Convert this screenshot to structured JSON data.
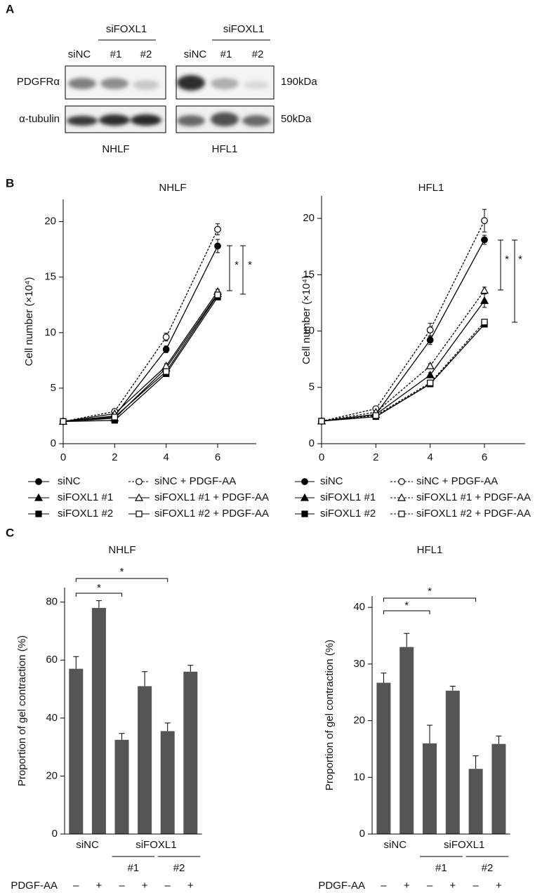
{
  "panel_labels": [
    "A",
    "B",
    "C"
  ],
  "blot": {
    "groups": [
      "siFOXL1",
      "siFOXL1"
    ],
    "lanes": [
      "siNC",
      "#1",
      "#2",
      "siNC",
      "#1",
      "#2"
    ],
    "rows": [
      "PDGFRα",
      "α-tubulin"
    ],
    "sizes": [
      "190kDa",
      "50kDa"
    ],
    "cells": [
      "NHLF",
      "HFL1"
    ]
  },
  "chart_data": [
    {
      "type": "line",
      "title": "NHLF",
      "y_label": "Cell number (×10⁴)",
      "x": [
        0,
        2,
        4,
        6
      ],
      "xlim": [
        0,
        7.5
      ],
      "xticks": [
        0,
        2,
        4,
        6
      ],
      "ylim": [
        0,
        22
      ],
      "yticks": [
        0,
        5,
        10,
        15,
        20
      ],
      "series": [
        {
          "name": "siNC",
          "color": "#000000",
          "marker": "circle",
          "filled": true,
          "dash": false,
          "values": [
            2,
            2.5,
            8.5,
            17.8
          ],
          "errors": [
            0.1,
            0.15,
            0.3,
            0.6
          ]
        },
        {
          "name": "siFOXL1 #1",
          "color": "#000000",
          "marker": "triangle",
          "filled": true,
          "dash": false,
          "values": [
            2,
            2.3,
            6.8,
            13.5
          ],
          "errors": [
            0.1,
            0.1,
            0.2,
            0.2
          ]
        },
        {
          "name": "siFOXL1 #2",
          "color": "#000000",
          "marker": "square",
          "filled": true,
          "dash": false,
          "values": [
            2,
            2.1,
            6.3,
            13.2
          ],
          "errors": [
            0.1,
            0.1,
            0.2,
            0.2
          ]
        },
        {
          "name": "siNC + PDGF-AA",
          "color": "#000000",
          "marker": "circle",
          "filled": false,
          "dash": true,
          "values": [
            2,
            2.9,
            9.6,
            19.3
          ],
          "errors": [
            0.1,
            0.15,
            0.35,
            0.5
          ]
        },
        {
          "name": "siFOXL1 #1 + PDGF-AA",
          "color": "#000000",
          "marker": "triangle",
          "filled": false,
          "dash": false,
          "values": [
            2,
            2.7,
            7.0,
            13.7
          ],
          "errors": [
            0.1,
            0.1,
            0.2,
            0.2
          ]
        },
        {
          "name": "siFOXL1 #2 + PDGF-AA",
          "color": "#000000",
          "marker": "square",
          "filled": false,
          "dash": false,
          "values": [
            2,
            2.4,
            6.5,
            13.4
          ],
          "errors": [
            0.1,
            0.1,
            0.2,
            0.2
          ]
        }
      ],
      "annotations": [
        "*",
        "*"
      ]
    },
    {
      "type": "line",
      "title": "HFL1",
      "y_label": "Cell number (×10⁴)",
      "x": [
        0,
        2,
        4,
        6
      ],
      "xlim": [
        0,
        7.5
      ],
      "xticks": [
        0,
        2,
        4,
        6
      ],
      "ylim": [
        0,
        22
      ],
      "yticks": [
        0,
        5,
        10,
        15,
        20
      ],
      "series": [
        {
          "name": "siNC",
          "color": "#000000",
          "marker": "circle",
          "filled": true,
          "dash": false,
          "values": [
            2,
            2.6,
            9.2,
            18.1
          ],
          "errors": [
            0.1,
            0.15,
            0.4,
            0.4
          ]
        },
        {
          "name": "siFOXL1 #1",
          "color": "#000000",
          "marker": "triangle",
          "filled": true,
          "dash": false,
          "values": [
            2,
            2.6,
            6.1,
            12.7
          ],
          "errors": [
            0.1,
            0.1,
            0.2,
            0.6
          ]
        },
        {
          "name": "siFOXL1 #2",
          "color": "#000000",
          "marker": "square",
          "filled": true,
          "dash": false,
          "values": [
            2,
            2.4,
            5.3,
            10.6
          ],
          "errors": [
            0.1,
            0.1,
            0.2,
            0.2
          ]
        },
        {
          "name": "siNC + PDGF-AA",
          "color": "#000000",
          "marker": "circle",
          "filled": false,
          "dash": true,
          "values": [
            2,
            3.1,
            10.1,
            19.8
          ],
          "errors": [
            0.1,
            0.2,
            0.6,
            1.0
          ]
        },
        {
          "name": "siFOXL1 #1 + PDGF-AA",
          "color": "#000000",
          "marker": "triangle",
          "filled": false,
          "dash": true,
          "values": [
            2,
            2.8,
            6.9,
            13.6
          ],
          "errors": [
            0.1,
            0.1,
            0.2,
            0.3
          ]
        },
        {
          "name": "siFOXL1 #2 + PDGF-AA",
          "color": "#000000",
          "marker": "square",
          "filled": false,
          "dash": true,
          "values": [
            2,
            2.5,
            5.4,
            10.8
          ],
          "errors": [
            0.1,
            0.1,
            0.2,
            0.2
          ]
        }
      ],
      "annotations": [
        "*",
        "*"
      ]
    },
    {
      "type": "bar",
      "title": "NHLF",
      "y_label": "Proportion of gel contraction (%)",
      "categories": [
        "–",
        "+",
        "–",
        "+",
        "–",
        "+"
      ],
      "category_label": "PDGF-AA",
      "groups": [
        "siNC",
        "siFOXL1"
      ],
      "subgroups": [
        "#1",
        "#2"
      ],
      "values": [
        57,
        78,
        32.5,
        51,
        35.5,
        56
      ],
      "errors": [
        4.2,
        2.5,
        2.2,
        5,
        2.8,
        2.2
      ],
      "color": "#555555",
      "ylim": [
        0,
        85
      ],
      "yticks": [
        0,
        20,
        40,
        60,
        80
      ],
      "annotations": [
        "*",
        "*"
      ]
    },
    {
      "type": "bar",
      "title": "HFL1",
      "y_label": "Proportion of gel contraction (%)",
      "categories": [
        "–",
        "+",
        "–",
        "+",
        "–",
        "+"
      ],
      "category_label": "PDGF-AA",
      "groups": [
        "siNC",
        "siFOXL1"
      ],
      "subgroups": [
        "#1",
        "#2"
      ],
      "values": [
        26.7,
        33,
        16,
        25.3,
        11.5,
        15.9
      ],
      "errors": [
        1.7,
        2.4,
        3.2,
        0.8,
        2.3,
        1.4
      ],
      "color": "#555555",
      "ylim": [
        0,
        42
      ],
      "yticks": [
        0,
        10,
        20,
        30,
        40
      ],
      "annotations": [
        "*",
        "*"
      ]
    }
  ]
}
